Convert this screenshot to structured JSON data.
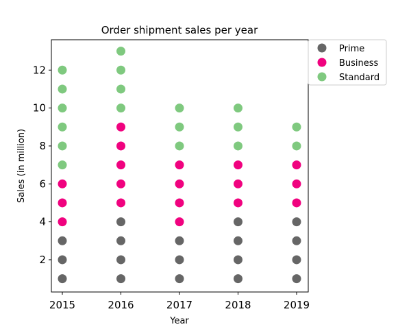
{
  "chart_data": {
    "type": "scatter",
    "title": "Order shipment sales per year",
    "xlabel": "Year",
    "ylabel": "Sales (in million)",
    "categories": [
      "2015",
      "2016",
      "2017",
      "2018",
      "2019"
    ],
    "y_ticks": [
      "2",
      "4",
      "6",
      "8",
      "10",
      "12"
    ],
    "ylim": [
      0.3,
      13.6
    ],
    "legend_position": "outside-top-right",
    "grid": false,
    "series": [
      {
        "name": "Prime",
        "color": "#666666",
        "values": [
          3,
          4,
          3,
          4,
          4
        ]
      },
      {
        "name": "Business",
        "color": "#f0027f",
        "values": [
          3,
          5,
          4,
          3,
          3
        ]
      },
      {
        "name": "Standard",
        "color": "#7fc97f",
        "values": [
          6,
          4,
          3,
          3,
          2
        ]
      }
    ]
  }
}
